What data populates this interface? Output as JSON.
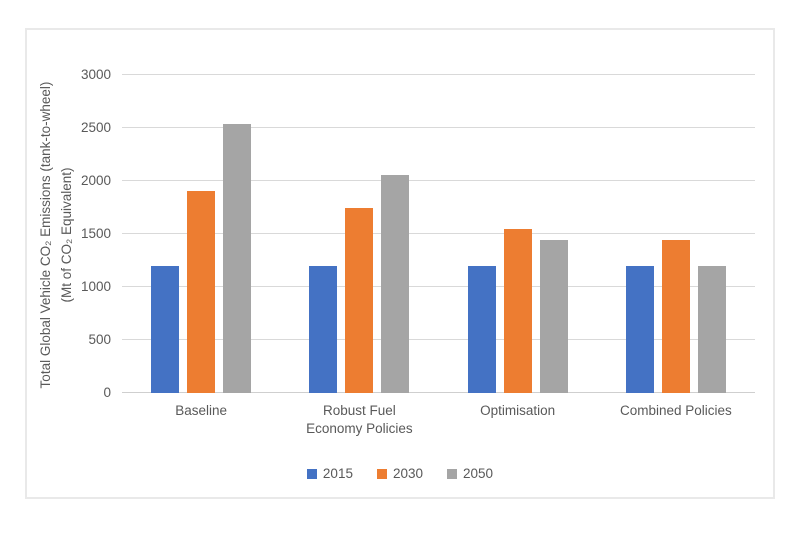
{
  "chart_data": {
    "type": "bar",
    "title": "",
    "ylabel_line1": "Total Global Vehicle CO₂ Emissions (tank-to-wheel)",
    "ylabel_line2": "(Mt of CO₂ Equivalent)",
    "xlabel": "",
    "ylim": [
      0,
      3000
    ],
    "yticks": [
      0,
      500,
      1000,
      1500,
      2000,
      2500,
      3000
    ],
    "grid": true,
    "legend_position": "bottom",
    "categories": [
      "Baseline",
      "Robust Fuel Economy Policies",
      "Optimisation",
      "Combined Policies"
    ],
    "series": [
      {
        "name": "2015",
        "color": "#4472C4",
        "values": [
          1200,
          1200,
          1200,
          1200
        ]
      },
      {
        "name": "2030",
        "color": "#ED7D31",
        "values": [
          1910,
          1750,
          1550,
          1440
        ]
      },
      {
        "name": "2050",
        "color": "#A5A5A5",
        "values": [
          2540,
          2060,
          1440,
          1200
        ]
      }
    ]
  },
  "colors": {
    "text": "#595959",
    "gridline": "#D9D9D9",
    "frame_border": "#E9E9E9",
    "background": "#FFFFFF"
  }
}
